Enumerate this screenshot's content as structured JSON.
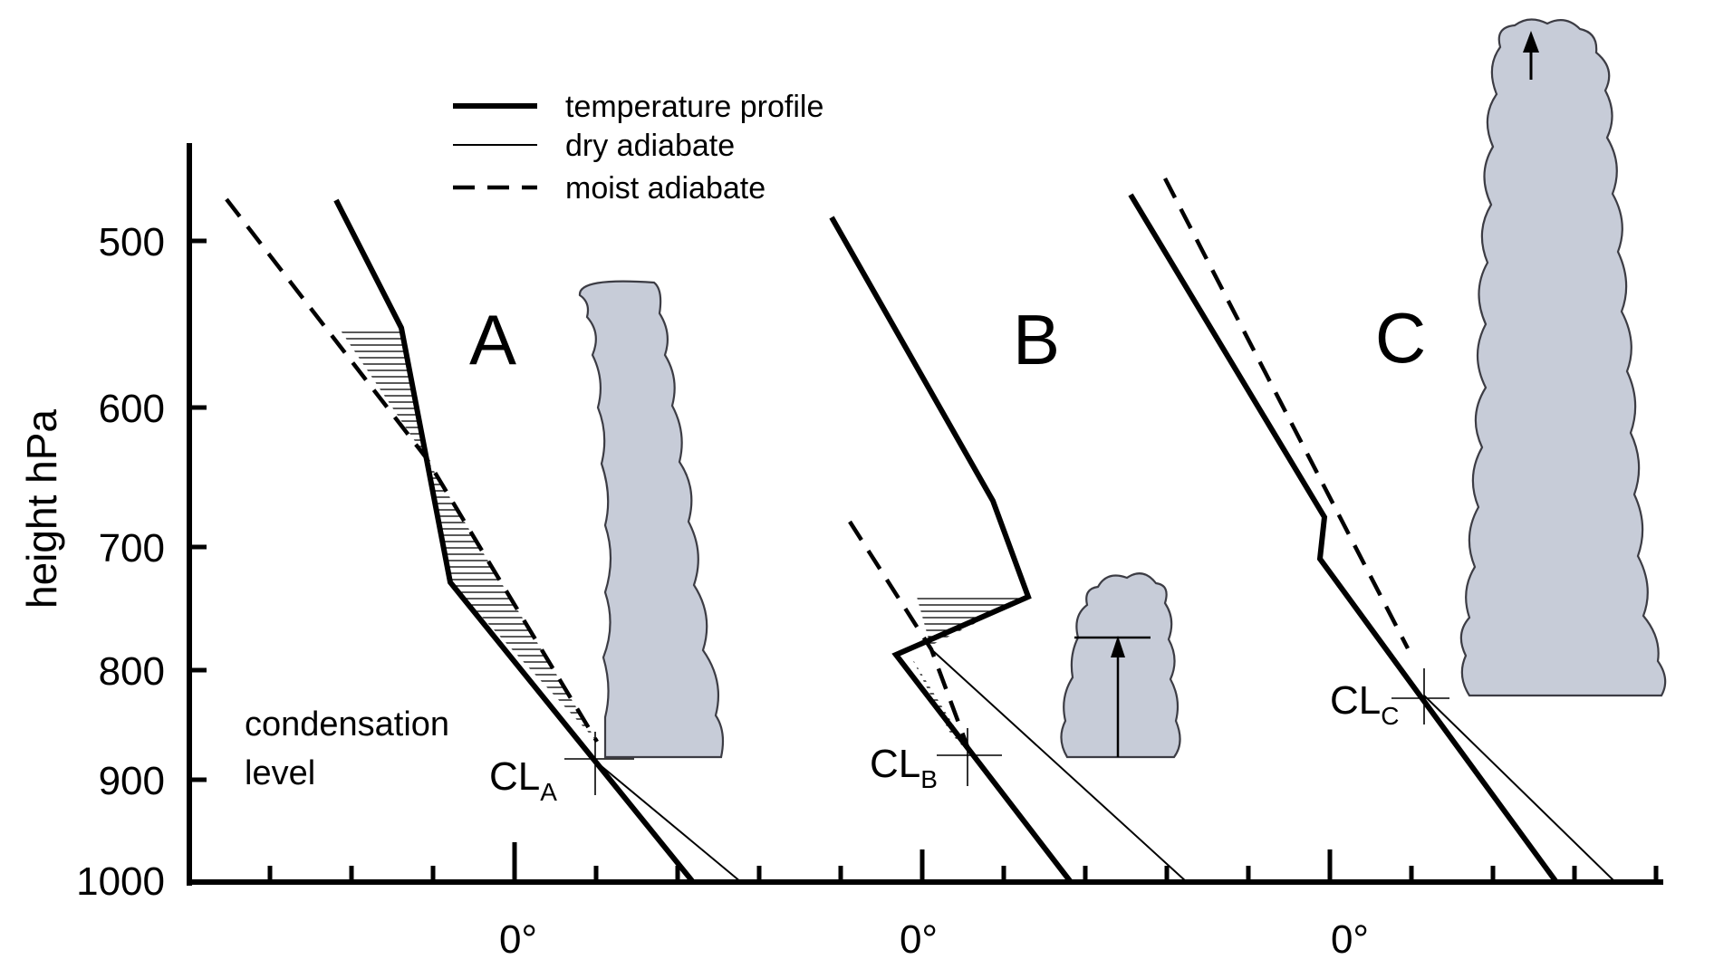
{
  "axis": {
    "y_title": "height hPa",
    "y_ticks": [
      "500",
      "600",
      "700",
      "800",
      "900",
      "1000"
    ],
    "x_zero_label": "0°"
  },
  "legend": {
    "items": [
      {
        "style": "thick",
        "label": "temperature profile"
      },
      {
        "style": "thin",
        "label": "dry adiabate"
      },
      {
        "style": "dashed",
        "label": "moist adiabate"
      }
    ]
  },
  "cases": [
    {
      "id": "A",
      "label": "A",
      "cl_main": "CL",
      "cl_sub": "A"
    },
    {
      "id": "B",
      "label": "B",
      "cl_main": "CL",
      "cl_sub": "B"
    },
    {
      "id": "C",
      "label": "C",
      "cl_main": "CL",
      "cl_sub": "C"
    }
  ],
  "annotation": {
    "condensation_line1": "condensation",
    "condensation_line2": "level"
  },
  "colors": {
    "line": "#000000",
    "cloud_fill": "#c7ccd8",
    "cloud_edge": "#3c3c44"
  }
}
